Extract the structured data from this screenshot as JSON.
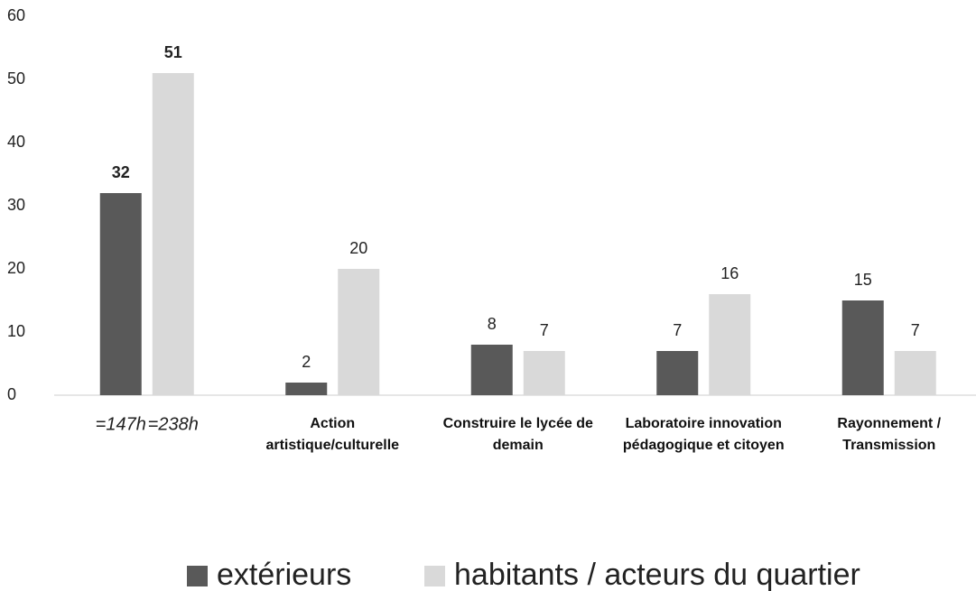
{
  "chart_data": {
    "type": "bar",
    "categories": [
      null,
      "Action artistique/culturelle",
      "Construire le lycée de demain",
      "Laboratoire innovation pédagogique et citoyen",
      "Rayonnement / Transmission"
    ],
    "series": [
      {
        "name": "extérieurs",
        "color": "#595959",
        "values": [
          32,
          2,
          8,
          7,
          15
        ]
      },
      {
        "name": "habitants / acteurs du quartier",
        "color": "#d9d9d9",
        "values": [
          51,
          20,
          7,
          16,
          7
        ]
      }
    ],
    "annotations": [
      "=147h",
      "=238h"
    ],
    "ylim": [
      0,
      60
    ],
    "yticks": [
      0,
      10,
      20,
      30,
      40,
      50,
      60
    ],
    "grid": false,
    "legend": "bottom"
  }
}
